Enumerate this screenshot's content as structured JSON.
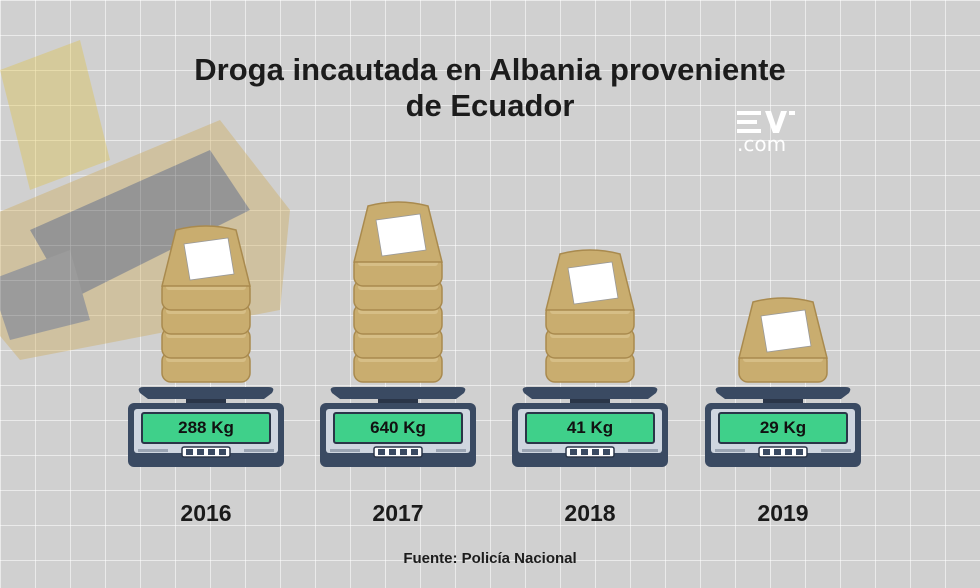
{
  "chart_data": {
    "type": "bar",
    "title": "Droga incautada en Albania proveniente de Ecuador",
    "categories": [
      "2016",
      "2017",
      "2018",
      "2019"
    ],
    "values": [
      288,
      640,
      41,
      29
    ],
    "value_labels": [
      "288 Kg",
      "640 Kg",
      "41 Kg",
      "29 Kg"
    ],
    "package_counts": [
      4,
      5,
      3,
      1
    ],
    "unit": "Kg",
    "source": "Fuente: Policía Nacional"
  },
  "brand": {
    "logo_ev": "EV",
    "logo_com": ".com"
  },
  "colors": {
    "display": "#3fd08a",
    "scale_body": "#3a4a62",
    "scale_face": "#cfd6e0",
    "package": "#c9ad6f",
    "package_label": "#ffffff"
  }
}
